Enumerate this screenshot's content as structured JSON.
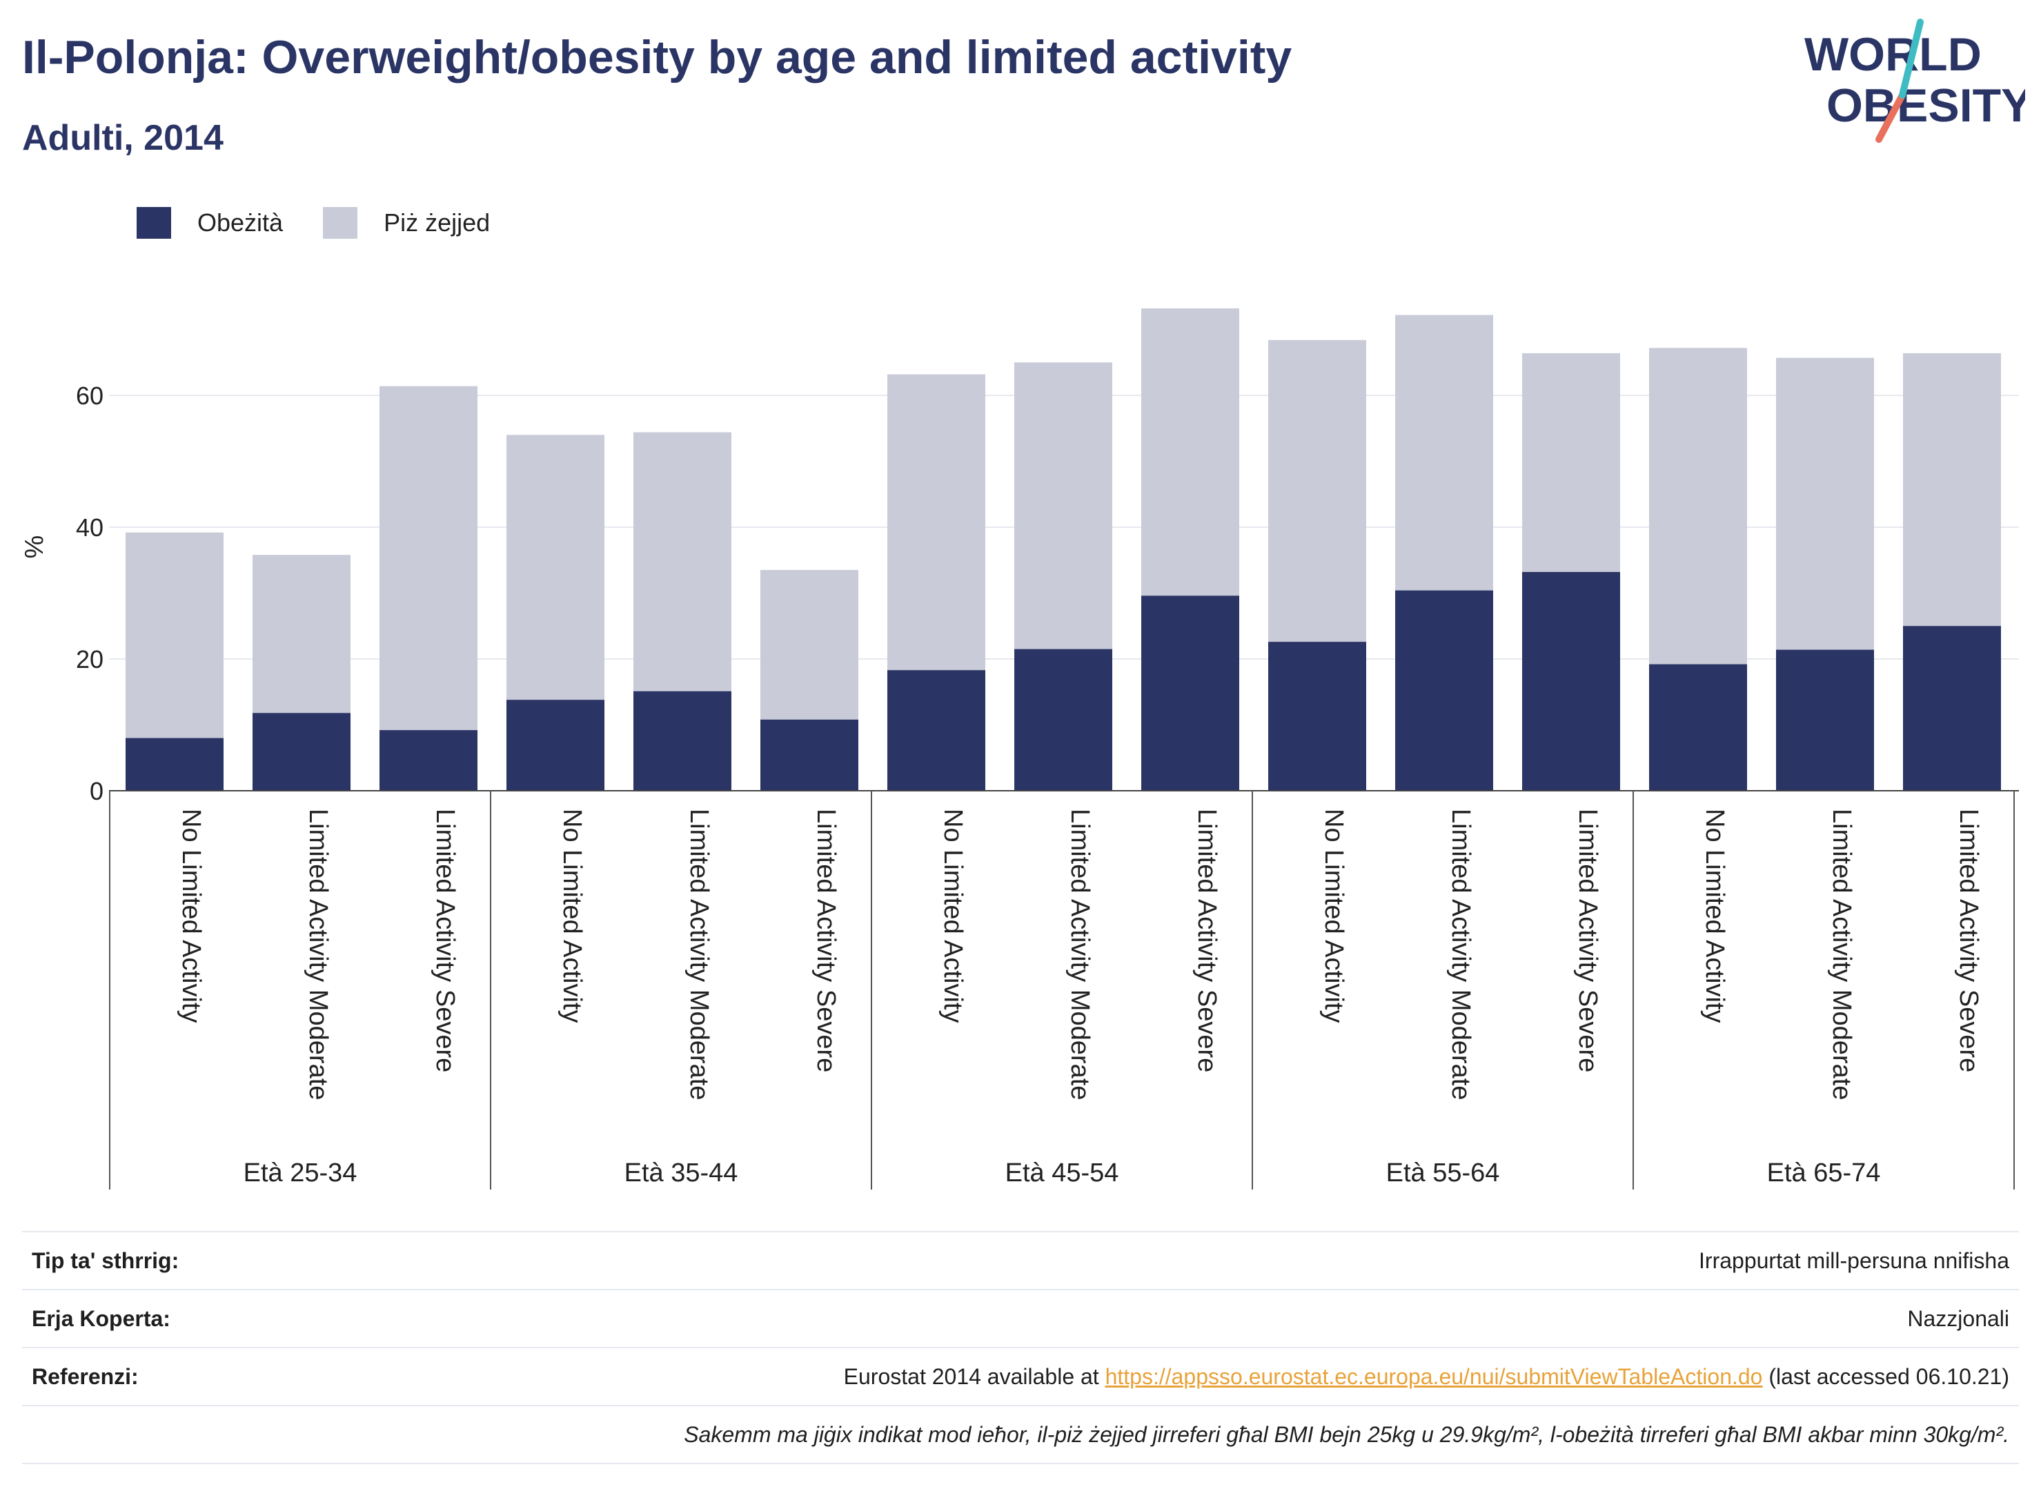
{
  "header": {
    "title": "Il-Polonja: Overweight/obesity by age and limited activity",
    "subtitle": "Adulti, 2014"
  },
  "logo": {
    "line1": "WORLD",
    "line2": "OBESITY"
  },
  "legend": [
    {
      "label": "Obeżità",
      "color": "#2b3565"
    },
    {
      "label": "Piż żejjed",
      "color": "#c9ccd8"
    }
  ],
  "chart_data": {
    "type": "bar",
    "stacked": false,
    "overlay": true,
    "ylabel": "%",
    "ylim": [
      0,
      75
    ],
    "yticks": [
      0,
      20,
      40,
      60
    ],
    "grid": true,
    "legend_position": "top-left",
    "groups": [
      {
        "label": "Età 25-34",
        "categories": [
          "No Limited Activity",
          "Limited Activity Moderate",
          "Limited Activity Severe"
        ]
      },
      {
        "label": "Età 35-44",
        "categories": [
          "No Limited Activity",
          "Limited Activity Moderate",
          "Limited Activity Severe"
        ]
      },
      {
        "label": "Età 45-54",
        "categories": [
          "No Limited Activity",
          "Limited Activity Moderate",
          "Limited Activity Severe"
        ]
      },
      {
        "label": "Età 55-64",
        "categories": [
          "No Limited Activity",
          "Limited Activity Moderate",
          "Limited Activity Severe"
        ]
      },
      {
        "label": "Età 65-74",
        "categories": [
          "No Limited Activity",
          "Limited Activity Moderate",
          "Limited Activity Severe"
        ]
      }
    ],
    "series": [
      {
        "name": "Piż żejjed",
        "color": "#c9ccd8",
        "values": [
          39.2,
          35.8,
          61.4,
          54.0,
          54.4,
          33.5,
          63.2,
          65.0,
          73.2,
          68.4,
          72.2,
          66.4,
          67.2,
          65.7,
          66.4
        ]
      },
      {
        "name": "Obeżità",
        "color": "#2b3565",
        "values": [
          8.0,
          11.8,
          9.2,
          13.8,
          15.1,
          10.8,
          18.3,
          21.5,
          29.6,
          22.6,
          30.4,
          33.2,
          19.2,
          21.4,
          25.0
        ]
      }
    ]
  },
  "info": {
    "rows": [
      {
        "key": "Tip ta' sthrrig:",
        "value": "Irrappurtat mill-persuna nnifisha"
      },
      {
        "key": "Erja Koperta:",
        "value": "Nazzjonali"
      },
      {
        "key": "Referenzi:",
        "value_prefix": "Eurostat 2014 available at ",
        "link": "https://appsso.eurostat.ec.europa.eu/nui/submitViewTableAction.do",
        "value_suffix": " (last accessed 06.10.21)"
      }
    ],
    "note": "Sakemm ma jiġix indikat mod ieħor, il-piż żejjed jirreferi għal BMI bejn 25kg u 29.9kg/m², l-obeżità tirreferi għal BMI akbar minn 30kg/m²."
  }
}
